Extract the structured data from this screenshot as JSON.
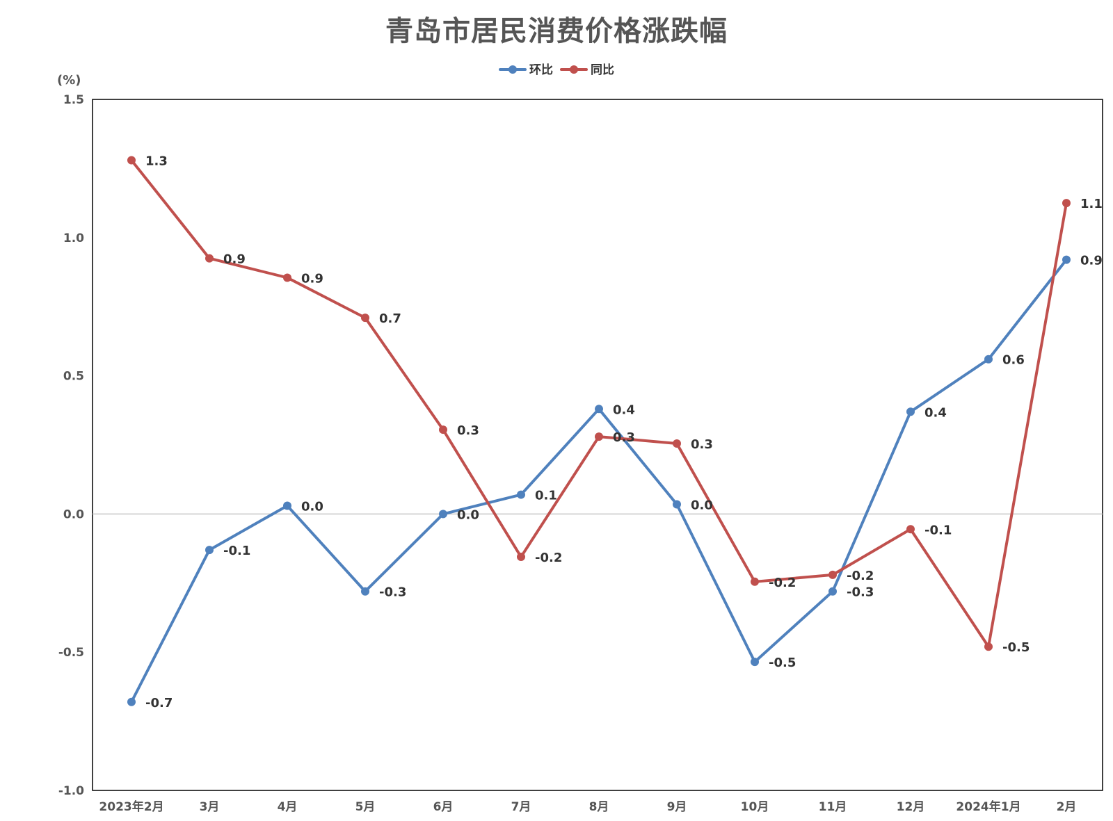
{
  "chart_data": {
    "type": "line",
    "title": "青岛市居民消费价格涨跌幅",
    "unit_label": "(%)",
    "xlabel": "",
    "ylabel": "",
    "categories": [
      "2023年2月",
      "3月",
      "4月",
      "5月",
      "6月",
      "7月",
      "8月",
      "9月",
      "10月",
      "11月",
      "12月",
      "2024年1月",
      "2月"
    ],
    "ylim": [
      -1.0,
      1.5
    ],
    "yticks": [
      -1.0,
      -0.5,
      0.0,
      0.5,
      1.0,
      1.5
    ],
    "ytick_labels": [
      "-1.0",
      "-0.5",
      "0.0",
      "0.5",
      "1.0",
      "1.5"
    ],
    "legend_position": "top-center",
    "grid": false,
    "series": [
      {
        "name": "环比",
        "color": "#4f81bd",
        "values": [
          -0.68,
          -0.13,
          0.03,
          -0.28,
          0.0,
          0.07,
          0.38,
          0.035,
          -0.535,
          -0.28,
          0.37,
          0.56,
          0.92
        ],
        "labels": [
          "-0.7",
          "-0.1",
          "0.0",
          "-0.3",
          "0.0",
          "0.1",
          "0.4",
          "0.0",
          "-0.5",
          "-0.3",
          "0.4",
          "0.6",
          "0.9"
        ]
      },
      {
        "name": "同比",
        "color": "#c0504d",
        "values": [
          1.28,
          0.925,
          0.855,
          0.71,
          0.305,
          -0.155,
          0.28,
          0.255,
          -0.245,
          -0.22,
          -0.055,
          -0.48,
          1.125
        ],
        "labels": [
          "1.3",
          "0.9",
          "0.9",
          "0.7",
          "0.3",
          "-0.2",
          "0.3",
          "0.3",
          "-0.2",
          "-0.2",
          "-0.1",
          "-0.5",
          "1.1"
        ]
      }
    ]
  }
}
